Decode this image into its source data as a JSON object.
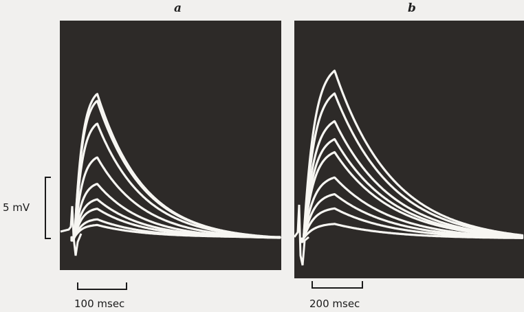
{
  "figure": {
    "panel_a_label": "a",
    "panel_b_label": "b",
    "voltage_scale_label": "5 mV",
    "time_scale_a_label": "100 msec",
    "time_scale_b_label": "200 msec"
  },
  "colors": {
    "panel_background": "#2d2a28",
    "trace": "#f7f6f2",
    "page": "#f1f0ee"
  },
  "chart_data": [
    {
      "type": "line",
      "panel": "a",
      "xlabel": "",
      "ylabel": "",
      "x_unit": "msec",
      "y_unit": "mV",
      "scale_bars": {
        "time": 100,
        "voltage": 5
      },
      "grid": false,
      "time_to_peak_msec": 47,
      "series": [
        {
          "peak_mV": 12.0
        },
        {
          "peak_mV": 11.4
        },
        {
          "peak_mV": 9.5
        },
        {
          "peak_mV": 6.7
        },
        {
          "peak_mV": 4.5
        },
        {
          "peak_mV": 3.2
        },
        {
          "peak_mV": 2.4
        },
        {
          "peak_mV": 1.5
        },
        {
          "peak_mV": 1.0
        }
      ]
    },
    {
      "type": "line",
      "panel": "b",
      "xlabel": "",
      "ylabel": "",
      "x_unit": "msec",
      "y_unit": "mV",
      "scale_bars": {
        "time": 200,
        "voltage": 5
      },
      "grid": false,
      "time_to_peak_msec": 125,
      "series": [
        {
          "peak_mV": 14.0
        },
        {
          "peak_mV": 12.1
        },
        {
          "peak_mV": 9.8
        },
        {
          "peak_mV": 8.3
        },
        {
          "peak_mV": 7.2
        },
        {
          "peak_mV": 5.1
        },
        {
          "peak_mV": 3.7
        },
        {
          "peak_mV": 2.5
        },
        {
          "peak_mV": 1.2
        }
      ]
    }
  ]
}
